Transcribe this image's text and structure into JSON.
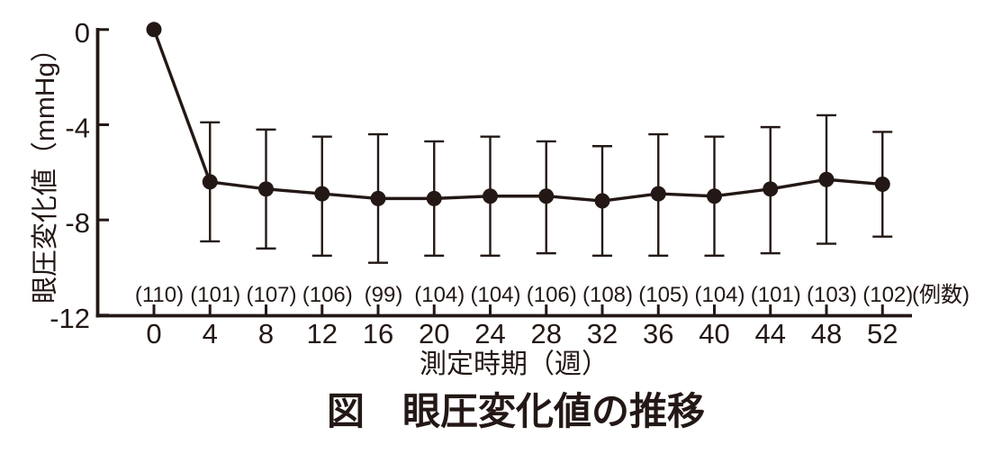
{
  "page": {
    "background_color": "#ffffff",
    "ink_color": "#231815"
  },
  "figure_caption": "図　眼圧変化値の推移",
  "chart_data": {
    "type": "line",
    "title": "図　眼圧変化値の推移",
    "xlabel": "測定時期（週）",
    "ylabel": "眼圧変化値（mmHg）",
    "x": [
      0,
      4,
      8,
      12,
      16,
      20,
      24,
      28,
      32,
      36,
      40,
      44,
      48,
      52
    ],
    "xlim": [
      0,
      52
    ],
    "ylim": [
      -12,
      0
    ],
    "yticks": [
      0,
      -4,
      -8,
      -12
    ],
    "grid": false,
    "legend": "none",
    "series": [
      {
        "name": "眼圧変化値",
        "marker": "filled-circle",
        "color": "#231815",
        "values": [
          0,
          -6.4,
          -6.7,
          -6.9,
          -7.1,
          -7.1,
          -7.0,
          -7.0,
          -7.2,
          -6.9,
          -7.0,
          -6.7,
          -6.3,
          -6.5
        ],
        "error_bar_top": [
          null,
          -3.9,
          -4.2,
          -4.5,
          -4.4,
          -4.7,
          -4.5,
          -4.7,
          -4.9,
          -4.4,
          -4.5,
          -4.1,
          -3.6,
          -4.3
        ],
        "error_bar_bottom": [
          null,
          -8.9,
          -9.2,
          -9.5,
          -9.8,
          -9.5,
          -9.5,
          -9.4,
          -9.5,
          -9.5,
          -9.5,
          -9.4,
          -9.0,
          -8.7
        ]
      }
    ],
    "sample_sizes": [
      110,
      101,
      107,
      106,
      99,
      104,
      104,
      106,
      108,
      105,
      104,
      101,
      103,
      102
    ],
    "sample_sizes_row_label": "(例数)"
  }
}
